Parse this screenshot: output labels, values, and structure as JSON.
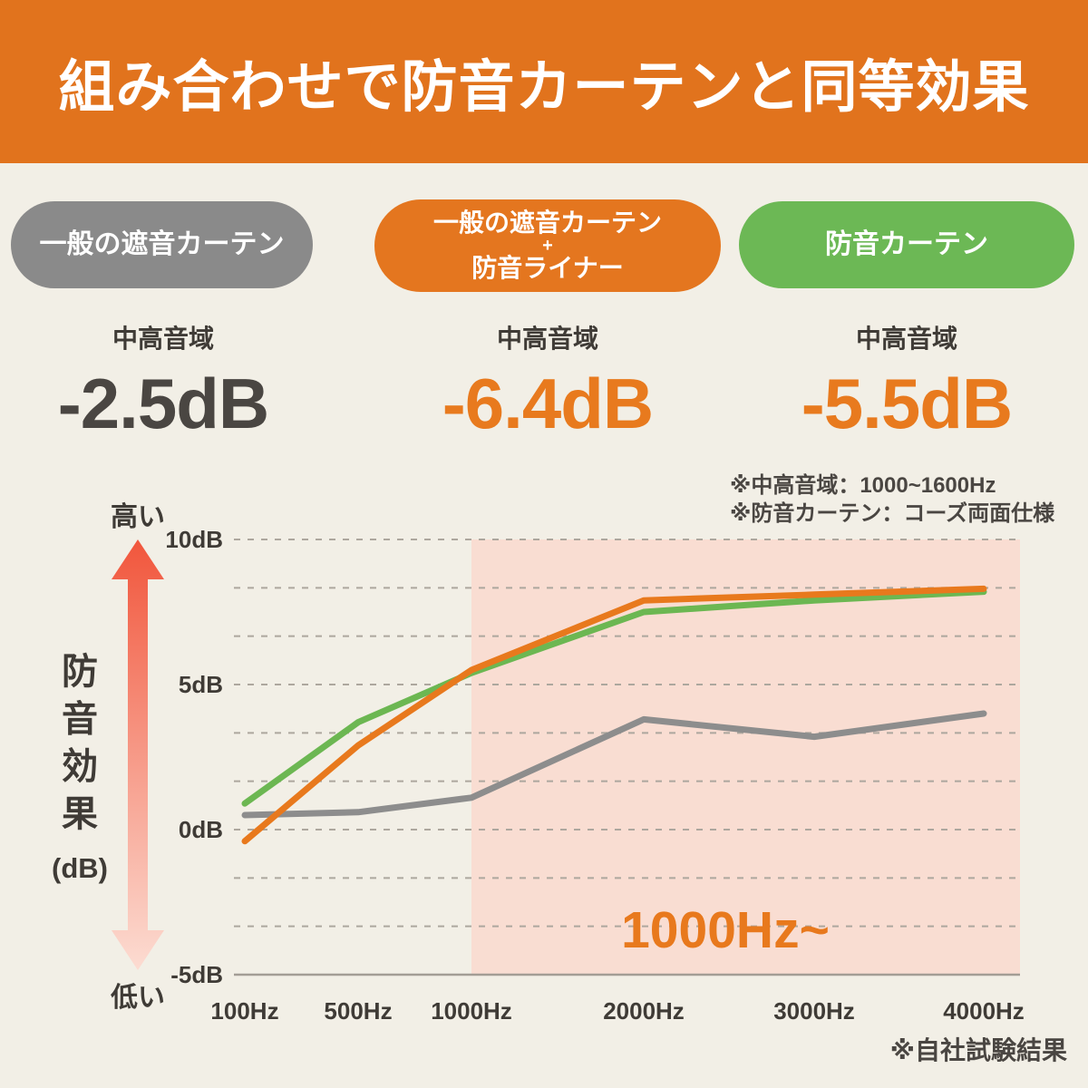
{
  "banner": {
    "title": "組み合わせで防音カーテンと同等効果",
    "bg": "#e1731d",
    "text_color": "#ffffff"
  },
  "comparison": {
    "columns": [
      {
        "pill_lines": [
          "一般の遮音カーテン"
        ],
        "pill_color": "#8a8a8a",
        "range_label": "中高音域",
        "value": "-2.5dB",
        "value_color": "#4a4642"
      },
      {
        "pill_lines": [
          "一般の遮音カーテン",
          "+",
          "防音ライナー"
        ],
        "pill_color": "#e4761f",
        "range_label": "中高音域",
        "value": "-6.4dB",
        "value_color": "#e87a1e"
      },
      {
        "pill_lines": [
          "防音カーテン"
        ],
        "pill_color": "#6cb855",
        "range_label": "中高音域",
        "value": "-5.5dB",
        "value_color": "#e87a1e"
      }
    ]
  },
  "notes": {
    "line1": "※中高音域：1000~1600Hz",
    "line2": "※防音カーテン：コーズ両面仕様"
  },
  "chart_data": {
    "type": "line",
    "x_categories": [
      "100Hz",
      "500Hz",
      "1000Hz",
      "2000Hz",
      "3000Hz",
      "4000Hz"
    ],
    "y_ticks": [
      {
        "label": "10dB",
        "value": 10
      },
      {
        "label": "5dB",
        "value": 5
      },
      {
        "label": "0dB",
        "value": 0
      },
      {
        "label": "-5dB",
        "value": -5
      }
    ],
    "ylim": [
      -5,
      10
    ],
    "grid": true,
    "gridline_step_db": 1.6667,
    "y_axis_label": "防音効果",
    "y_axis_unit": "(dB)",
    "axis_high_label": "高い",
    "axis_low_label": "低い",
    "arrow_gradient": [
      "#f1563c",
      "#fcdcd2"
    ],
    "highlight_region": {
      "label": "1000Hz~",
      "from": "1000Hz",
      "color": "#f9ddd2",
      "label_color": "#e8791d"
    },
    "series": [
      {
        "name": "一般の遮音カーテン",
        "color": "#8d8d8d",
        "values": [
          0.5,
          0.6,
          1.1,
          3.8,
          3.2,
          4.0
        ]
      },
      {
        "name": "一般の遮音カーテン＋防音ライナー",
        "color": "#e8791d",
        "values": [
          -0.4,
          2.9,
          5.5,
          7.9,
          8.1,
          8.3
        ]
      },
      {
        "name": "防音カーテン",
        "color": "#6cb752",
        "values": [
          0.9,
          3.7,
          5.4,
          7.5,
          7.9,
          8.2
        ]
      }
    ],
    "footnote": "※自社試験結果"
  }
}
